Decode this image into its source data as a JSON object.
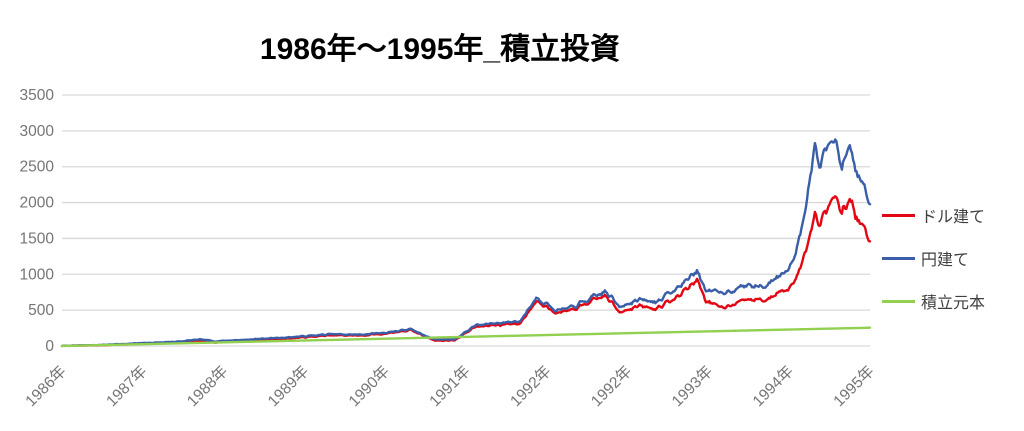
{
  "chart_data": {
    "type": "line",
    "title": "1986年〜1995年_積立投資",
    "x_tick_labels": [
      "1986年",
      "1987年",
      "1988年",
      "1989年",
      "1990年",
      "1991年",
      "1992年",
      "1992年",
      "1993年",
      "1994年",
      "1995年"
    ],
    "y_ticks": [
      0,
      500,
      1000,
      1500,
      2000,
      2500,
      3000,
      3500
    ],
    "y_range": [
      0,
      3500
    ],
    "grid": true,
    "legend_position": "right",
    "series": [
      {
        "name": "ドル建て",
        "color": "#e30613",
        "points": [
          [
            0,
            2
          ],
          [
            0.047,
            10
          ],
          [
            0.1,
            32
          ],
          [
            0.146,
            48
          ],
          [
            0.171,
            70
          ],
          [
            0.19,
            50
          ],
          [
            0.233,
            78
          ],
          [
            0.282,
            108
          ],
          [
            0.332,
            148
          ],
          [
            0.369,
            146
          ],
          [
            0.4,
            172
          ],
          [
            0.431,
            222
          ],
          [
            0.462,
            75
          ],
          [
            0.486,
            80
          ],
          [
            0.511,
            268
          ],
          [
            0.548,
            302
          ],
          [
            0.567,
            315
          ],
          [
            0.588,
            650
          ],
          [
            0.61,
            460
          ],
          [
            0.629,
            485
          ],
          [
            0.647,
            575
          ],
          [
            0.672,
            700
          ],
          [
            0.69,
            480
          ],
          [
            0.715,
            558
          ],
          [
            0.734,
            520
          ],
          [
            0.759,
            660
          ],
          [
            0.786,
            930
          ],
          [
            0.796,
            650
          ],
          [
            0.814,
            530
          ],
          [
            0.833,
            600
          ],
          [
            0.851,
            645
          ],
          [
            0.87,
            640
          ],
          [
            0.888,
            758
          ],
          [
            0.901,
            820
          ],
          [
            0.913,
            1060
          ],
          [
            0.923,
            1500
          ],
          [
            0.932,
            1820
          ],
          [
            0.938,
            1700
          ],
          [
            0.948,
            1950
          ],
          [
            0.957,
            2100
          ],
          [
            0.965,
            1820
          ],
          [
            0.975,
            2060
          ],
          [
            0.984,
            1760
          ],
          [
            0.991,
            1700
          ],
          [
            1,
            1460
          ]
        ]
      },
      {
        "name": "円建て",
        "color": "#3a5fa8",
        "points": [
          [
            0,
            2
          ],
          [
            0.047,
            15
          ],
          [
            0.1,
            40
          ],
          [
            0.146,
            62
          ],
          [
            0.171,
            92
          ],
          [
            0.19,
            66
          ],
          [
            0.233,
            92
          ],
          [
            0.282,
            122
          ],
          [
            0.332,
            162
          ],
          [
            0.369,
            160
          ],
          [
            0.4,
            186
          ],
          [
            0.431,
            235
          ],
          [
            0.462,
            90
          ],
          [
            0.486,
            92
          ],
          [
            0.511,
            288
          ],
          [
            0.548,
            328
          ],
          [
            0.567,
            342
          ],
          [
            0.588,
            690
          ],
          [
            0.61,
            500
          ],
          [
            0.629,
            525
          ],
          [
            0.647,
            620
          ],
          [
            0.672,
            760
          ],
          [
            0.69,
            560
          ],
          [
            0.715,
            645
          ],
          [
            0.734,
            610
          ],
          [
            0.759,
            780
          ],
          [
            0.786,
            1050
          ],
          [
            0.796,
            800
          ],
          [
            0.814,
            730
          ],
          [
            0.833,
            790
          ],
          [
            0.851,
            855
          ],
          [
            0.87,
            825
          ],
          [
            0.888,
            1000
          ],
          [
            0.901,
            1110
          ],
          [
            0.913,
            1500
          ],
          [
            0.923,
            2200
          ],
          [
            0.932,
            2750
          ],
          [
            0.938,
            2520
          ],
          [
            0.948,
            2800
          ],
          [
            0.957,
            2900
          ],
          [
            0.965,
            2460
          ],
          [
            0.975,
            2800
          ],
          [
            0.984,
            2370
          ],
          [
            0.991,
            2300
          ],
          [
            1,
            1980
          ]
        ]
      },
      {
        "name": "積立元本",
        "color": "#92d050",
        "smooth": true,
        "points": [
          [
            0,
            0
          ],
          [
            1,
            255
          ]
        ]
      }
    ]
  },
  "colors": {
    "gridline": "#d9d9d9",
    "axis_text": "#757575",
    "legend_text": "#3f3f3f",
    "title_text": "#000000",
    "background": "#ffffff"
  }
}
